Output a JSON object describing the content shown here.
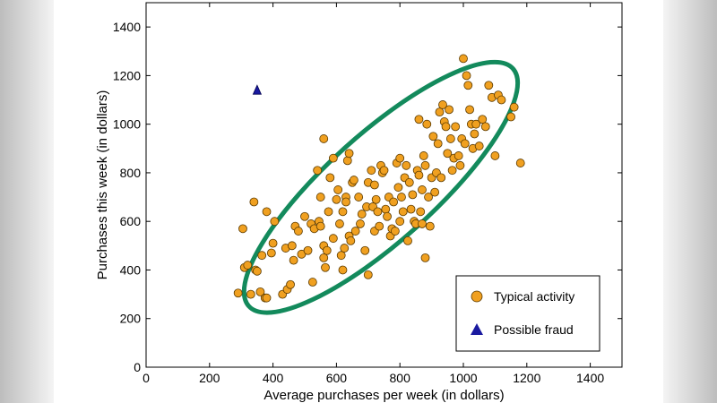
{
  "chart_data": {
    "type": "scatter",
    "title": "",
    "xlabel": "Average purchases per week (in dollars)",
    "ylabel": "Purchases this week (in dollars)",
    "xlim": [
      0,
      1500
    ],
    "ylim": [
      0,
      1500
    ],
    "xticks": [
      "0",
      "200",
      "400",
      "600",
      "800",
      "1000",
      "1200",
      "1400"
    ],
    "yticks": [
      "0",
      "200",
      "400",
      "600",
      "800",
      "1000",
      "1200",
      "1400"
    ],
    "grid": false,
    "legend_position": "bottom-right",
    "series": [
      {
        "name": "Typical activity",
        "marker": "circle",
        "color": "#f0a020",
        "points": [
          [
            290,
            305
          ],
          [
            305,
            570
          ],
          [
            310,
            410
          ],
          [
            320,
            420
          ],
          [
            330,
            300
          ],
          [
            340,
            680
          ],
          [
            345,
            400
          ],
          [
            350,
            395
          ],
          [
            360,
            310
          ],
          [
            365,
            460
          ],
          [
            375,
            285
          ],
          [
            380,
            285
          ],
          [
            380,
            640
          ],
          [
            395,
            470
          ],
          [
            400,
            510
          ],
          [
            405,
            600
          ],
          [
            430,
            300
          ],
          [
            440,
            490
          ],
          [
            445,
            320
          ],
          [
            455,
            340
          ],
          [
            460,
            500
          ],
          [
            465,
            440
          ],
          [
            470,
            580
          ],
          [
            480,
            560
          ],
          [
            490,
            465
          ],
          [
            500,
            620
          ],
          [
            510,
            480
          ],
          [
            520,
            590
          ],
          [
            525,
            350
          ],
          [
            530,
            570
          ],
          [
            540,
            810
          ],
          [
            545,
            600
          ],
          [
            550,
            700
          ],
          [
            550,
            580
          ],
          [
            560,
            940
          ],
          [
            560,
            450
          ],
          [
            560,
            500
          ],
          [
            565,
            410
          ],
          [
            570,
            480
          ],
          [
            575,
            640
          ],
          [
            580,
            780
          ],
          [
            590,
            860
          ],
          [
            590,
            530
          ],
          [
            600,
            690
          ],
          [
            605,
            730
          ],
          [
            610,
            590
          ],
          [
            615,
            460
          ],
          [
            620,
            400
          ],
          [
            620,
            640
          ],
          [
            625,
            490
          ],
          [
            630,
            700
          ],
          [
            630,
            680
          ],
          [
            635,
            850
          ],
          [
            640,
            880
          ],
          [
            640,
            540
          ],
          [
            645,
            520
          ],
          [
            650,
            760
          ],
          [
            655,
            770
          ],
          [
            660,
            560
          ],
          [
            670,
            700
          ],
          [
            675,
            590
          ],
          [
            680,
            630
          ],
          [
            690,
            480
          ],
          [
            695,
            660
          ],
          [
            700,
            380
          ],
          [
            700,
            760
          ],
          [
            710,
            810
          ],
          [
            715,
            660
          ],
          [
            720,
            750
          ],
          [
            720,
            560
          ],
          [
            725,
            690
          ],
          [
            730,
            640
          ],
          [
            735,
            580
          ],
          [
            740,
            830
          ],
          [
            745,
            800
          ],
          [
            750,
            810
          ],
          [
            755,
            650
          ],
          [
            760,
            620
          ],
          [
            765,
            700
          ],
          [
            770,
            540
          ],
          [
            775,
            570
          ],
          [
            780,
            680
          ],
          [
            785,
            560
          ],
          [
            790,
            840
          ],
          [
            795,
            740
          ],
          [
            800,
            860
          ],
          [
            800,
            600
          ],
          [
            805,
            700
          ],
          [
            810,
            640
          ],
          [
            815,
            780
          ],
          [
            820,
            830
          ],
          [
            825,
            520
          ],
          [
            830,
            760
          ],
          [
            835,
            650
          ],
          [
            840,
            710
          ],
          [
            845,
            600
          ],
          [
            850,
            590
          ],
          [
            855,
            810
          ],
          [
            860,
            1020
          ],
          [
            860,
            790
          ],
          [
            865,
            640
          ],
          [
            870,
            730
          ],
          [
            870,
            590
          ],
          [
            875,
            870
          ],
          [
            880,
            830
          ],
          [
            880,
            450
          ],
          [
            885,
            1000
          ],
          [
            890,
            700
          ],
          [
            895,
            580
          ],
          [
            900,
            780
          ],
          [
            905,
            950
          ],
          [
            910,
            720
          ],
          [
            915,
            800
          ],
          [
            920,
            920
          ],
          [
            925,
            1050
          ],
          [
            930,
            780
          ],
          [
            935,
            1080
          ],
          [
            940,
            1010
          ],
          [
            945,
            990
          ],
          [
            950,
            880
          ],
          [
            955,
            1060
          ],
          [
            960,
            940
          ],
          [
            965,
            810
          ],
          [
            970,
            860
          ],
          [
            975,
            990
          ],
          [
            985,
            870
          ],
          [
            990,
            830
          ],
          [
            995,
            940
          ],
          [
            1000,
            1270
          ],
          [
            1005,
            920
          ],
          [
            1010,
            1200
          ],
          [
            1015,
            1160
          ],
          [
            1020,
            1060
          ],
          [
            1025,
            1000
          ],
          [
            1030,
            900
          ],
          [
            1035,
            960
          ],
          [
            1040,
            1000
          ],
          [
            1050,
            910
          ],
          [
            1060,
            1020
          ],
          [
            1070,
            990
          ],
          [
            1080,
            1160
          ],
          [
            1090,
            1110
          ],
          [
            1100,
            870
          ],
          [
            1110,
            1120
          ],
          [
            1120,
            1100
          ],
          [
            1150,
            1030
          ],
          [
            1160,
            1070
          ],
          [
            1180,
            840
          ]
        ]
      },
      {
        "name": "Possible fraud",
        "marker": "triangle",
        "color": "#1a1aa0",
        "points": [
          [
            350,
            1140
          ]
        ]
      }
    ],
    "annotations": [
      {
        "type": "ellipse",
        "label": "typical-cluster",
        "color": "#138a5c",
        "center": [
          740,
          740
        ],
        "semi_axes": [
          560,
          220
        ],
        "rotation_deg": 42
      }
    ]
  }
}
